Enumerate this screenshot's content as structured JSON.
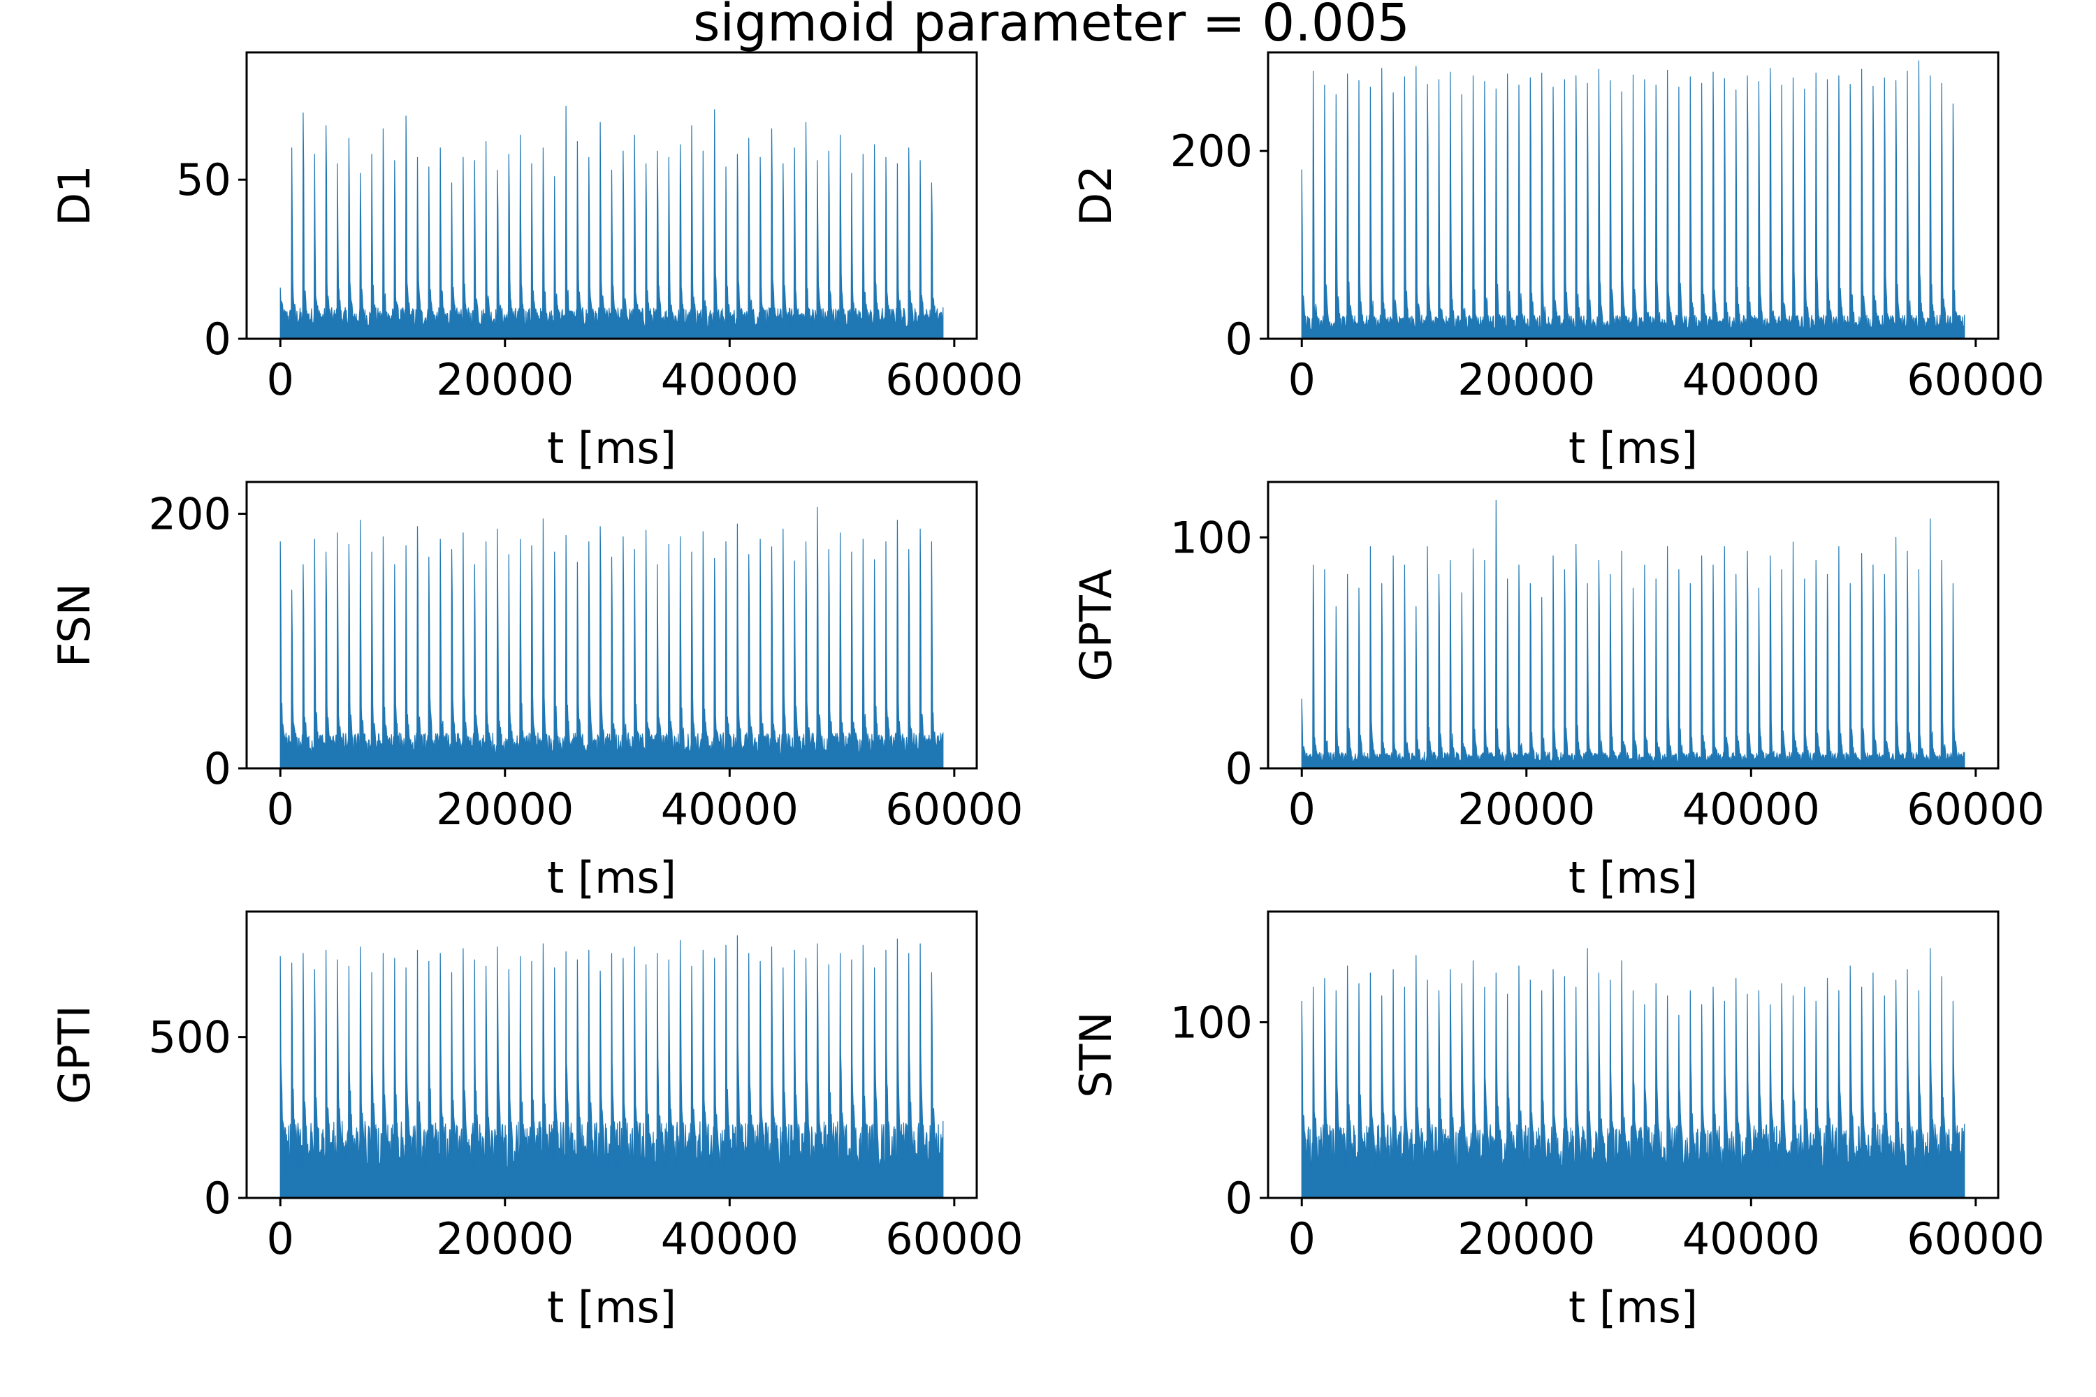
{
  "figure": {
    "title": "sigmoid parameter = 0.005"
  },
  "colors": {
    "series": "#1f77b4",
    "axes": "#000000",
    "background": "#ffffff"
  },
  "chart_data": [
    {
      "type": "area",
      "ylabel": "D1",
      "xlabel": "t [ms]",
      "xlim": [
        -3000,
        62000
      ],
      "ylim": [
        0,
        90
      ],
      "xticks": [
        "0",
        "20000",
        "40000",
        "60000"
      ],
      "yticks": [
        "0",
        "50"
      ],
      "x_range": [
        0,
        59000
      ],
      "burst_count": 58,
      "peak_values": [
        16,
        60,
        71,
        58,
        67,
        55,
        63,
        52,
        58,
        66,
        56,
        70,
        57,
        54,
        60,
        49,
        57,
        56,
        62,
        53,
        58,
        64,
        55,
        60,
        51,
        73,
        62,
        57,
        68,
        53,
        59,
        64,
        55,
        59,
        57,
        61,
        67,
        59,
        72,
        54,
        58,
        63,
        57,
        66,
        55,
        60,
        68,
        56,
        59,
        64,
        52,
        58,
        61,
        57,
        55,
        60,
        56,
        49
      ],
      "baseline_value": 7,
      "grid": false,
      "legend": "none"
    },
    {
      "type": "area",
      "ylabel": "D2",
      "xlabel": "t [ms]",
      "xlim": [
        -3000,
        62000
      ],
      "ylim": [
        0,
        305
      ],
      "xticks": [
        "0",
        "20000",
        "40000",
        "60000"
      ],
      "yticks": [
        "0",
        "200"
      ],
      "x_range": [
        0,
        59000
      ],
      "burst_count": 58,
      "peak_values": [
        180,
        285,
        270,
        260,
        282,
        275,
        268,
        288,
        262,
        279,
        290,
        271,
        276,
        284,
        260,
        280,
        274,
        266,
        282,
        270,
        278,
        283,
        268,
        276,
        280,
        272,
        287,
        275,
        263,
        281,
        276,
        270,
        286,
        268,
        279,
        272,
        284,
        277,
        265,
        280,
        274,
        288,
        270,
        278,
        266,
        283,
        276,
        280,
        271,
        287,
        269,
        278,
        275,
        285,
        296,
        280,
        272,
        250
      ],
      "baseline_value": 18,
      "grid": false,
      "legend": "none"
    },
    {
      "type": "area",
      "ylabel": "FSN",
      "xlabel": "t [ms]",
      "xlim": [
        -3000,
        62000
      ],
      "ylim": [
        0,
        225
      ],
      "xticks": [
        "0",
        "20000",
        "40000",
        "60000"
      ],
      "yticks": [
        "0",
        "200"
      ],
      "x_range": [
        0,
        59000
      ],
      "burst_count": 58,
      "peak_values": [
        178,
        140,
        160,
        180,
        170,
        185,
        176,
        195,
        170,
        182,
        160,
        175,
        190,
        166,
        180,
        172,
        185,
        160,
        178,
        188,
        168,
        180,
        175,
        196,
        170,
        183,
        162,
        178,
        190,
        166,
        182,
        172,
        187,
        160,
        176,
        182,
        170,
        186,
        165,
        178,
        192,
        168,
        180,
        174,
        188,
        163,
        178,
        205,
        172,
        185,
        170,
        180,
        164,
        178,
        195,
        172,
        188,
        178
      ],
      "baseline_value": 20,
      "grid": false,
      "legend": "none"
    },
    {
      "type": "area",
      "ylabel": "GPTA",
      "xlabel": "t [ms]",
      "xlim": [
        -3000,
        62000
      ],
      "ylim": [
        0,
        124
      ],
      "xticks": [
        "0",
        "20000",
        "40000",
        "60000"
      ],
      "yticks": [
        "0",
        "100"
      ],
      "x_range": [
        0,
        59000
      ],
      "burst_count": 58,
      "peak_values": [
        30,
        88,
        86,
        70,
        84,
        78,
        96,
        80,
        92,
        88,
        70,
        96,
        84,
        90,
        76,
        95,
        90,
        116,
        82,
        88,
        80,
        74,
        92,
        86,
        97,
        80,
        90,
        84,
        94,
        78,
        88,
        82,
        96,
        86,
        80,
        92,
        88,
        96,
        84,
        94,
        78,
        92,
        86,
        98,
        82,
        90,
        84,
        96,
        80,
        93,
        88,
        84,
        100,
        94,
        86,
        108,
        90,
        80
      ],
      "baseline_value": 5,
      "grid": false,
      "legend": "none"
    },
    {
      "type": "area",
      "ylabel": "GPTI",
      "xlabel": "t [ms]",
      "xlim": [
        -3000,
        62000
      ],
      "ylim": [
        0,
        890
      ],
      "xticks": [
        "0",
        "20000",
        "40000",
        "60000"
      ],
      "yticks": [
        "0",
        "500"
      ],
      "x_range": [
        0,
        59000
      ],
      "burst_count": 58,
      "peak_values": [
        750,
        730,
        760,
        710,
        770,
        740,
        720,
        780,
        700,
        760,
        745,
        715,
        770,
        735,
        760,
        700,
        775,
        740,
        720,
        780,
        710,
        750,
        735,
        790,
        715,
        765,
        740,
        770,
        705,
        760,
        745,
        780,
        725,
        760,
        740,
        800,
        720,
        770,
        745,
        785,
        815,
        760,
        735,
        780,
        715,
        770,
        745,
        790,
        725,
        760,
        740,
        785,
        715,
        770,
        805,
        760,
        790,
        700
      ],
      "baseline_value": 170,
      "grid": false,
      "legend": "none"
    },
    {
      "type": "area",
      "ylabel": "STN",
      "xlabel": "t [ms]",
      "xlim": [
        -3000,
        62000
      ],
      "ylim": [
        0,
        163
      ],
      "xticks": [
        "0",
        "20000",
        "40000",
        "60000"
      ],
      "yticks": [
        "0",
        "100"
      ],
      "x_range": [
        0,
        59000
      ],
      "burst_count": 58,
      "peak_values": [
        112,
        120,
        125,
        118,
        132,
        122,
        128,
        115,
        130,
        120,
        138,
        124,
        118,
        130,
        122,
        135,
        120,
        128,
        116,
        132,
        124,
        118,
        130,
        126,
        120,
        142,
        128,
        124,
        135,
        118,
        110,
        122,
        115,
        104,
        118,
        110,
        120,
        112,
        125,
        116,
        118,
        110,
        122,
        115,
        120,
        112,
        125,
        118,
        132,
        120,
        128,
        115,
        124,
        130,
        118,
        142,
        126,
        112
      ],
      "baseline_value": 30,
      "grid": false,
      "legend": "none"
    }
  ]
}
